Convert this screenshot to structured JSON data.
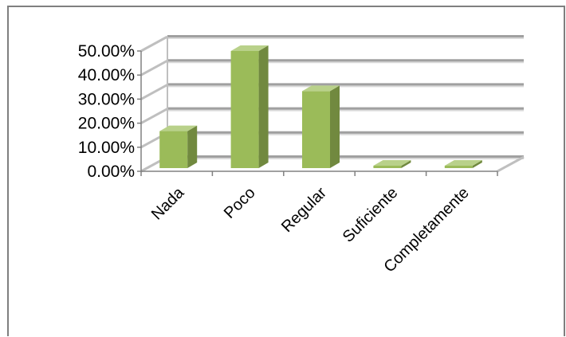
{
  "chart_data": {
    "type": "bar",
    "style": "3d-column",
    "categories": [
      "Nada",
      "Poco",
      "Regular",
      "Suficiente",
      "Completamente"
    ],
    "values": [
      16.7,
      50.0,
      33.3,
      0.0,
      0.0
    ],
    "y_ticks": [
      "0.00%",
      "10.00%",
      "20.00%",
      "30.00%",
      "40.00%",
      "50.00%"
    ],
    "ylim": [
      0,
      50
    ],
    "y_tick_step": 10,
    "grid": true,
    "legend": "none",
    "colors": {
      "bar_front": "#9bbb59",
      "bar_side": "#71893f",
      "bar_top": "#b9d18a",
      "gridline": "#808080",
      "wall_line": "#bfbfbf"
    }
  }
}
